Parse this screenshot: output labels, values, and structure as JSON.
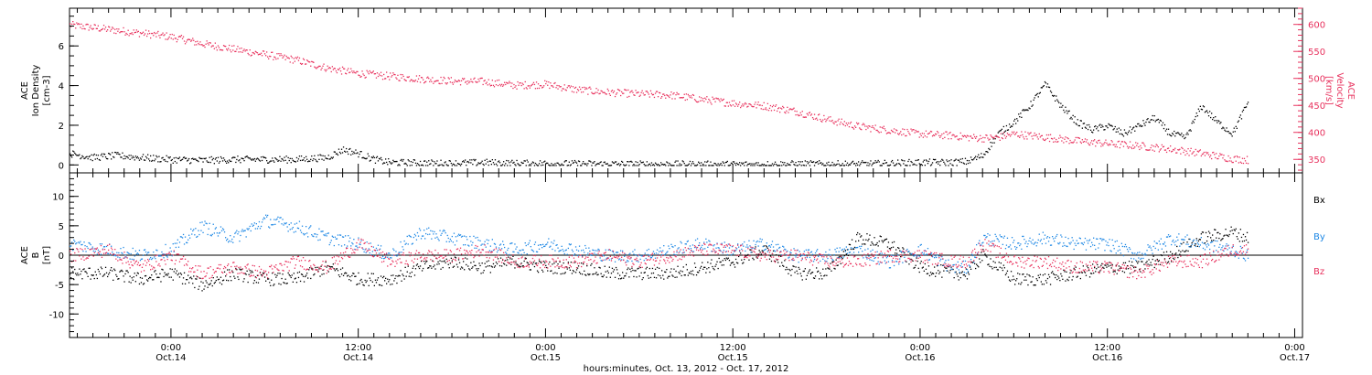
{
  "chart_data": [
    {
      "type": "scatter",
      "xlabel": "hours:minutes, Oct. 13, 2012 - Oct. 17, 2012",
      "x_ticks": [
        {
          "h": 6,
          "time": "0:00",
          "date": "Oct.14"
        },
        {
          "h": 18,
          "time": "12:00",
          "date": "Oct.14"
        },
        {
          "h": 30,
          "time": "0:00",
          "date": "Oct.15"
        },
        {
          "h": 42,
          "time": "12:00",
          "date": "Oct.15"
        },
        {
          "h": 54,
          "time": "0:00",
          "date": "Oct.16"
        },
        {
          "h": 66,
          "time": "12:00",
          "date": "Oct.16"
        },
        {
          "h": 78,
          "time": "0:00",
          "date": "Oct.17"
        }
      ],
      "xlim": [
        -0.5,
        78.5
      ],
      "ylabel": [
        "ACE",
        "Ion Density",
        "[cm-3]"
      ],
      "ylim": [
        -0.4,
        7.9
      ],
      "y_ticks": [
        0,
        2,
        4,
        6
      ],
      "y2label": [
        "ACE",
        "Velocity",
        "[km/s]"
      ],
      "y2lim": [
        325,
        630
      ],
      "y2_ticks": [
        350,
        400,
        450,
        500,
        550,
        600
      ],
      "series": [
        {
          "axis": "left",
          "color": "#000000",
          "x": [
            -0.5,
            1,
            2.5,
            4,
            6,
            8,
            10,
            12,
            14,
            16,
            17,
            18,
            19,
            20,
            22,
            24,
            26,
            28,
            30,
            32,
            34,
            36,
            38,
            40,
            42,
            44,
            46,
            48,
            50,
            52,
            54,
            56,
            57,
            58,
            59,
            60,
            61,
            62,
            63,
            64,
            65,
            66,
            67,
            68,
            69,
            70,
            71,
            72,
            73,
            74,
            75
          ],
          "y": [
            0.6,
            0.4,
            0.5,
            0.4,
            0.3,
            0.25,
            0.3,
            0.3,
            0.3,
            0.4,
            0.8,
            0.6,
            0.3,
            0.15,
            0.12,
            0.1,
            0.15,
            0.1,
            0.1,
            0.08,
            0.07,
            0.06,
            0.06,
            0.05,
            0.05,
            0.05,
            0.07,
            0.07,
            0.06,
            0.1,
            0.15,
            0.15,
            0.2,
            0.5,
            1.6,
            2.2,
            3.0,
            4.1,
            3.0,
            2.2,
            1.8,
            2.0,
            1.6,
            2.0,
            2.4,
            1.6,
            1.4,
            3.0,
            2.2,
            1.6,
            3.2
          ]
        },
        {
          "axis": "right",
          "color": "#e8325e",
          "x": [
            -0.5,
            1,
            2.5,
            4,
            6,
            8,
            10,
            12,
            14,
            16,
            18,
            20,
            22,
            24,
            26,
            28,
            30,
            32,
            34,
            36,
            38,
            40,
            42,
            44,
            46,
            48,
            50,
            52,
            54,
            56,
            57,
            58,
            59,
            60,
            62,
            64,
            66,
            68,
            70,
            72,
            74,
            75
          ],
          "y": [
            600,
            595,
            590,
            585,
            578,
            565,
            555,
            545,
            535,
            520,
            510,
            505,
            500,
            496,
            495,
            488,
            490,
            480,
            475,
            472,
            470,
            462,
            455,
            450,
            440,
            425,
            412,
            405,
            398,
            395,
            392,
            390,
            392,
            398,
            392,
            385,
            380,
            376,
            370,
            362,
            352,
            350
          ]
        }
      ]
    },
    {
      "type": "scatter",
      "xlabel": "hours:minutes, Oct. 13, 2012 - Oct. 17, 2012",
      "x_ticks": [
        {
          "h": 6,
          "time": "0:00",
          "date": "Oct.14"
        },
        {
          "h": 18,
          "time": "12:00",
          "date": "Oct.14"
        },
        {
          "h": 30,
          "time": "0:00",
          "date": "Oct.15"
        },
        {
          "h": 42,
          "time": "12:00",
          "date": "Oct.15"
        },
        {
          "h": 54,
          "time": "0:00",
          "date": "Oct.16"
        },
        {
          "h": 66,
          "time": "12:00",
          "date": "Oct.16"
        },
        {
          "h": 78,
          "time": "0:00",
          "date": "Oct.17"
        }
      ],
      "xlim": [
        -0.5,
        78.5
      ],
      "ylabel": [
        "ACE",
        "B",
        "[nT]"
      ],
      "ylim": [
        -14,
        14
      ],
      "y_ticks": [
        -10,
        -5,
        0,
        5,
        10
      ],
      "series": [
        {
          "name": "Bx",
          "color": "#000000",
          "x": [
            -0.5,
            2,
            4,
            6,
            8,
            10,
            12,
            14,
            16,
            18,
            20,
            22,
            24,
            26,
            28,
            30,
            32,
            34,
            36,
            38,
            40,
            42,
            44,
            46,
            48,
            50,
            52,
            54,
            56,
            57,
            58,
            60,
            62,
            64,
            66,
            68,
            70,
            72,
            74,
            75
          ],
          "y": [
            -3,
            -3,
            -4,
            -3,
            -5,
            -3,
            -4,
            -4,
            -2,
            -4,
            -4,
            -2,
            -1,
            -2,
            -1,
            -2,
            -2,
            -3,
            -3,
            -3,
            -2,
            -1,
            1,
            -3,
            -3,
            3,
            2,
            -2,
            -3,
            -3,
            0,
            -4,
            -4,
            -3,
            -2,
            -2,
            0,
            3,
            4,
            3
          ]
        },
        {
          "name": "By",
          "color": "#1e88e5",
          "x": [
            -0.5,
            2,
            4,
            6,
            8,
            10,
            12,
            14,
            16,
            18,
            20,
            22,
            24,
            26,
            28,
            30,
            32,
            34,
            36,
            38,
            40,
            42,
            44,
            46,
            48,
            50,
            52,
            54,
            56,
            57,
            58,
            60,
            62,
            64,
            66,
            68,
            70,
            72,
            74,
            75
          ],
          "y": [
            2,
            1,
            0,
            1,
            5,
            3,
            6,
            5,
            3,
            2,
            0,
            4,
            3,
            2,
            1,
            2,
            1,
            0,
            0,
            1,
            2,
            1,
            2,
            0,
            0,
            1,
            -1,
            1,
            -2,
            -2,
            3,
            2,
            3,
            2,
            2,
            0,
            3,
            2,
            1,
            0
          ]
        },
        {
          "name": "Bz",
          "color": "#e8325e",
          "x": [
            -0.5,
            2,
            4,
            6,
            8,
            10,
            12,
            14,
            16,
            18,
            20,
            22,
            24,
            26,
            28,
            30,
            32,
            34,
            36,
            38,
            40,
            42,
            44,
            46,
            48,
            50,
            52,
            54,
            56,
            57,
            58,
            60,
            62,
            64,
            66,
            68,
            70,
            72,
            74,
            75
          ],
          "y": [
            0,
            1,
            -2,
            0,
            -3,
            -2,
            -3,
            -1,
            -2,
            2,
            -1,
            0,
            0,
            1,
            -1,
            -1,
            -1,
            0,
            -1,
            0,
            1,
            1,
            0,
            0,
            -1,
            -1,
            0,
            0,
            -1,
            -1,
            2,
            -1,
            -1,
            -2,
            -2,
            -3,
            -1,
            -1,
            1,
            1
          ]
        }
      ]
    }
  ]
}
